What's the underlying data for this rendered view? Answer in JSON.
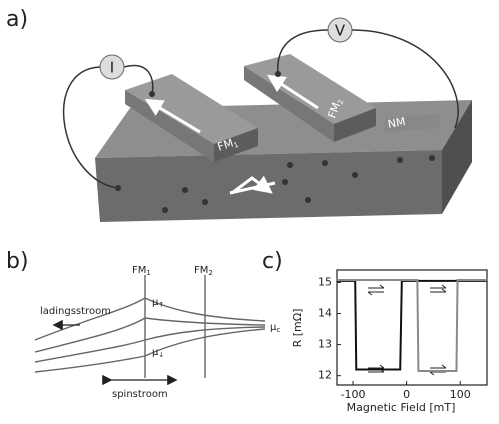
{
  "panels": {
    "a": {
      "label": "a)",
      "current": "I",
      "voltage": "V",
      "fm1": {
        "text": "FM",
        "sub": "1"
      },
      "fm2": {
        "text": "FM",
        "sub": "2"
      },
      "nm": "NM"
    },
    "b": {
      "label": "b)",
      "fm1": {
        "text": "FM",
        "sub": "1"
      },
      "fm2": {
        "text": "FM",
        "sub": "2"
      },
      "mu_up": {
        "text": "μ",
        "sub": "↑"
      },
      "mu_down": {
        "text": "μ",
        "sub": "↓"
      },
      "mu_c": {
        "text": "μ",
        "sub": "c"
      },
      "charge_current": "ladingsstroom",
      "spin_current": "spinstroom"
    },
    "c": {
      "label": "c)"
    }
  },
  "chart_data": {
    "type": "line",
    "xlabel": "Magnetic Field [mT]",
    "ylabel": "R  [mΩ]",
    "xlim": [
      -130,
      150
    ],
    "ylim": [
      11.7,
      15.4
    ],
    "xticks": [
      -100,
      0,
      100
    ],
    "yticks": [
      12,
      13,
      14,
      15
    ],
    "series": [
      {
        "color": "#111111",
        "x": [
          -130,
          -96,
          -94,
          -12,
          -9,
          150
        ],
        "values": [
          15.05,
          15.05,
          12.2,
          12.2,
          15.05,
          15.05
        ]
      },
      {
        "color": "#8a8a8a",
        "x": [
          150,
          95,
          93,
          22,
          20,
          -130
        ],
        "values": [
          15.08,
          15.08,
          12.15,
          12.15,
          15.08,
          15.08
        ]
      }
    ]
  }
}
